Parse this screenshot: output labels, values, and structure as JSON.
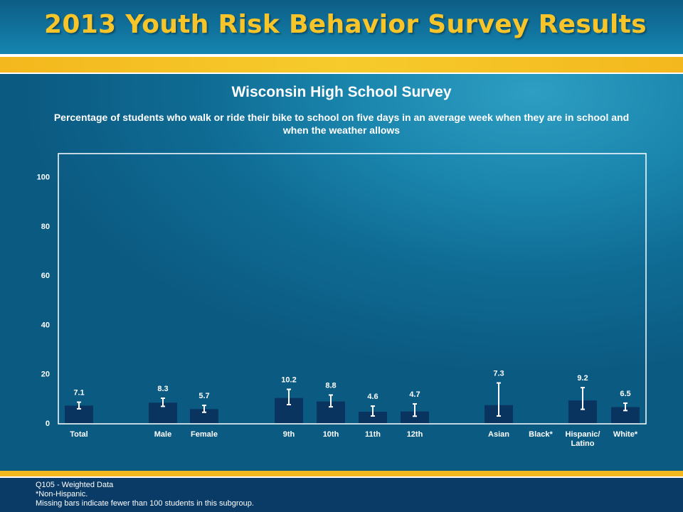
{
  "header": {
    "title": "2013 Youth Risk Behavior Survey Results"
  },
  "chart_data": {
    "type": "bar",
    "title": "Wisconsin High School Survey",
    "subtitle": "Percentage of students who walk or ride their bike to school on five days in an average week when they are in school and when the weather allows",
    "categories": [
      "Total",
      "Male",
      "Female",
      "9th",
      "10th",
      "11th",
      "12th",
      "Asian",
      "Black*",
      "Hispanic/ Latino",
      "White*"
    ],
    "category_lines": [
      [
        "Total"
      ],
      [
        "Male"
      ],
      [
        "Female"
      ],
      [
        "9th"
      ],
      [
        "10th"
      ],
      [
        "11th"
      ],
      [
        "12th"
      ],
      [
        "Asian"
      ],
      [
        "Black*"
      ],
      [
        "Hispanic/",
        "Latino"
      ],
      [
        "White*"
      ]
    ],
    "values": [
      7.1,
      8.3,
      5.7,
      10.2,
      8.8,
      4.6,
      4.7,
      7.3,
      null,
      9.2,
      6.5
    ],
    "value_labels": [
      "7.1",
      "8.3",
      "5.7",
      "10.2",
      "8.8",
      "4.6",
      "4.7",
      "7.3",
      "",
      "9.2",
      "6.5"
    ],
    "ci_low": [
      5.8,
      6.8,
      4.4,
      7.5,
      6.6,
      2.9,
      2.8,
      2.9,
      null,
      5.6,
      5.1
    ],
    "ci_high": [
      8.5,
      10.1,
      7.2,
      13.7,
      11.4,
      6.9,
      7.8,
      16.3,
      null,
      14.4,
      8.1
    ],
    "ylim": [
      0,
      100
    ],
    "yticks": [
      "0",
      "20",
      "40",
      "60",
      "80",
      "100"
    ],
    "grid": false,
    "bar_color": "#0a3460"
  },
  "footer": {
    "line1": "Q105 - Weighted Data",
    "line2": "*Non-Hispanic.",
    "line3": "Missing bars indicate fewer than 100 students in this subgroup."
  }
}
